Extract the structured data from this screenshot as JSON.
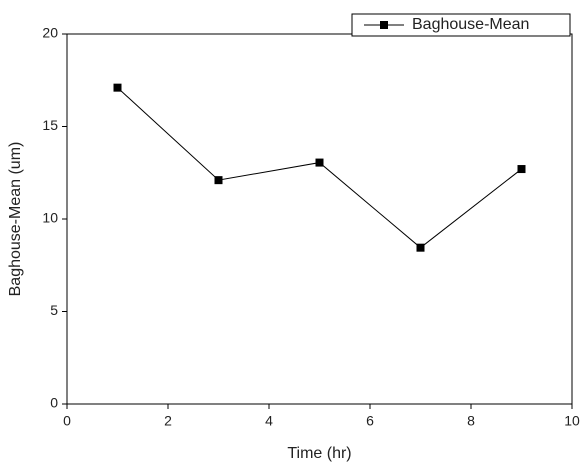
{
  "chart_data": {
    "type": "line",
    "x_label": "Time (hr)",
    "y_label": "Baghouse-Mean (um)",
    "x": [
      1,
      3,
      5,
      7,
      9
    ],
    "series": [
      {
        "name": "Baghouse-Mean",
        "color": "#000000",
        "values": [
          17.1,
          12.1,
          13.05,
          8.45,
          12.7
        ]
      }
    ],
    "xlim": [
      0,
      10
    ],
    "xticks": [
      0,
      2,
      4,
      6,
      8,
      10
    ],
    "ylim": [
      0,
      20
    ],
    "yticks": [
      0,
      5,
      10,
      15,
      20
    ],
    "legend": "upper-right",
    "grid": false
  }
}
